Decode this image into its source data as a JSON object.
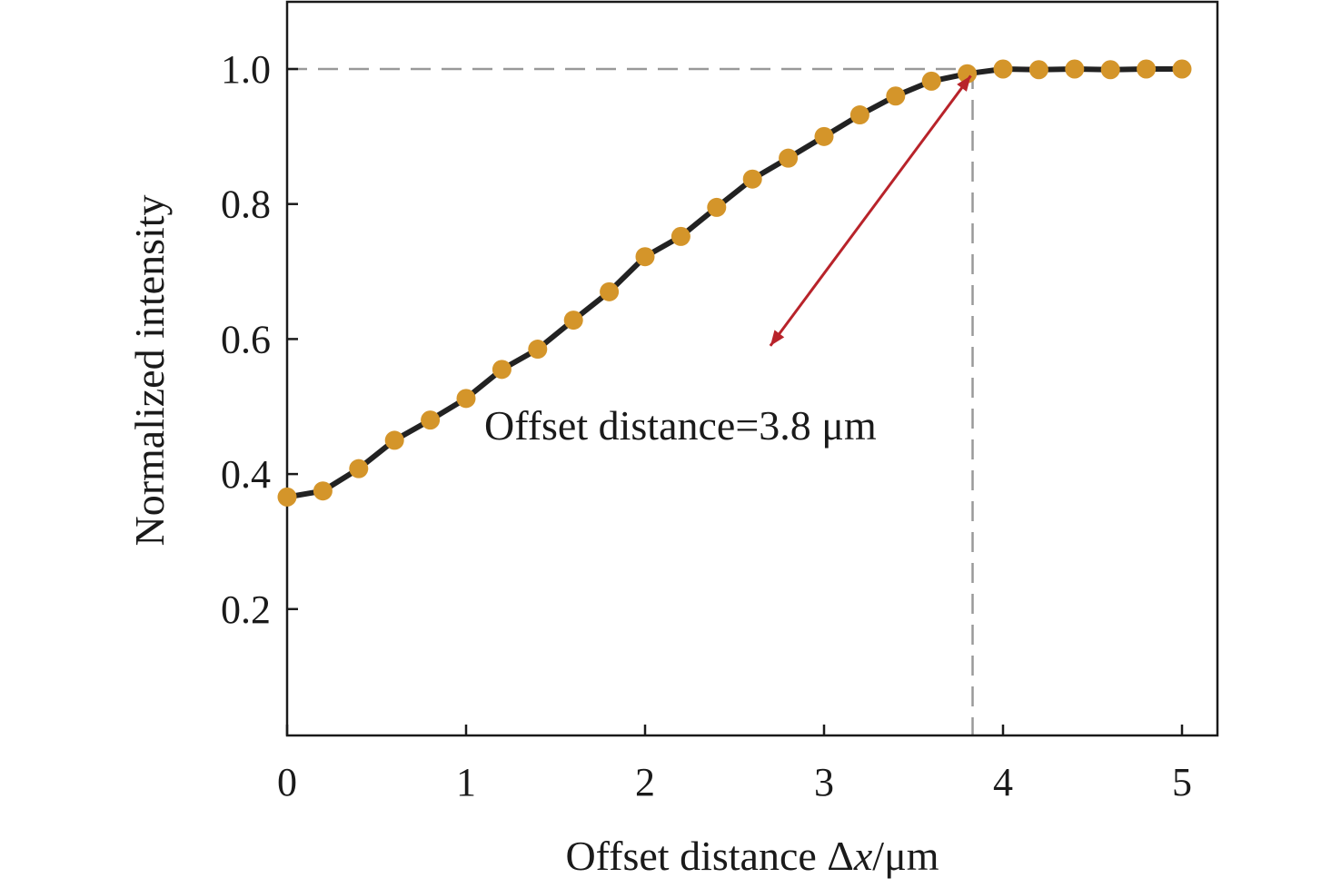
{
  "chart_data": {
    "type": "line",
    "xlabel_prefix": "Offset distance Δ",
    "xlabel_var": "x",
    "xlabel_unit": "/μm",
    "ylabel": "Normalized intensity",
    "xlim": [
      0,
      5.2
    ],
    "ylim": [
      0,
      1.09
    ],
    "xticks": [
      0,
      1,
      2,
      3,
      4,
      5
    ],
    "xtick_labels": [
      "0",
      "1",
      "2",
      "3",
      "4",
      "5"
    ],
    "yticks": [
      0.2,
      0.4,
      0.6,
      0.8,
      1.0
    ],
    "ytick_labels": [
      "0.2",
      "0.4",
      "0.6",
      "0.8",
      "1.0"
    ],
    "grid": false,
    "series": [
      {
        "line_color": "#222222",
        "marker_color": "#d4952a",
        "x": [
          0,
          0.2,
          0.4,
          0.6,
          0.8,
          1.0,
          1.2,
          1.4,
          1.6,
          1.8,
          2.0,
          2.2,
          2.4,
          2.6,
          2.8,
          3.0,
          3.2,
          3.4,
          3.6,
          3.8,
          4.0,
          4.2,
          4.4,
          4.6,
          4.8,
          5.0
        ],
        "y": [
          0.366,
          0.375,
          0.408,
          0.45,
          0.48,
          0.512,
          0.555,
          0.585,
          0.628,
          0.67,
          0.722,
          0.752,
          0.795,
          0.837,
          0.868,
          0.9,
          0.932,
          0.96,
          0.982,
          0.993,
          1.0,
          0.999,
          1.0,
          0.999,
          1.0,
          1.0
        ]
      }
    ],
    "reference_lines": {
      "color": "#999999",
      "hline_y": 1.0,
      "vline_x": 3.83
    },
    "annotation": {
      "text": "Offset distance=3.8 μm",
      "arrow_color": "#b8232a",
      "arrow_from": [
        3.82,
        0.99
      ],
      "arrow_to": [
        2.7,
        0.59
      ]
    }
  }
}
